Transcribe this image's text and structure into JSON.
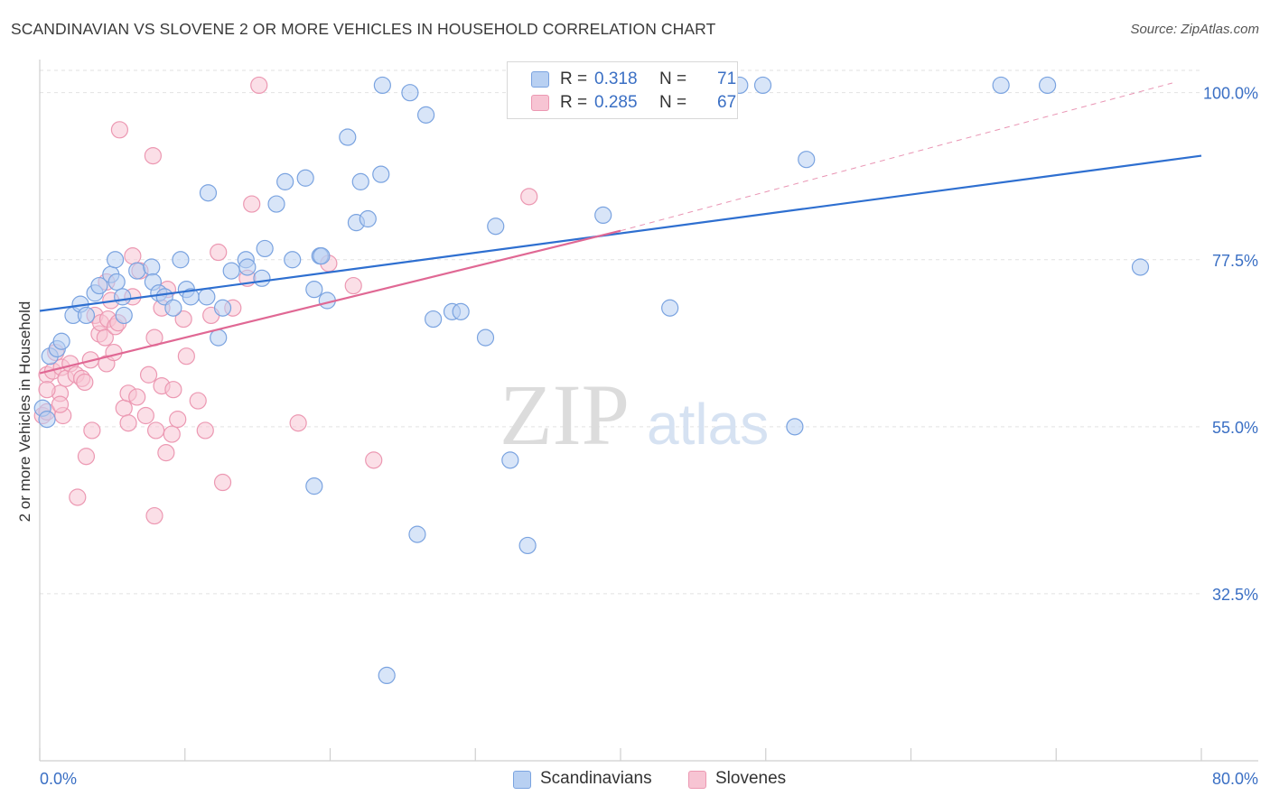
{
  "title": "SCANDINAVIAN VS SLOVENE 2 OR MORE VEHICLES IN HOUSEHOLD CORRELATION CHART",
  "source": "Source: ZipAtlas.com",
  "watermark": {
    "zip": "ZIP",
    "atlas": "atlas"
  },
  "legend": {
    "r_label": "R =",
    "n_label": "N =",
    "rows": [
      {
        "r": "0.318",
        "n": "71"
      },
      {
        "r": "0.285",
        "n": "67"
      }
    ]
  },
  "colors": {
    "blue_fill": "#b8d0f2",
    "blue_stroke": "#7aa3e0",
    "blue_line": "#2e6fd0",
    "pink_fill": "#f7c4d3",
    "pink_stroke": "#ec98b2",
    "pink_line": "#e06894",
    "tick_label": "#3a6fc4",
    "grid": "#e2e2e2"
  },
  "chart_data": {
    "type": "scatter",
    "title": "SCANDINAVIAN VS SLOVENE 2 OR MORE VEHICLES IN HOUSEHOLD CORRELATION CHART",
    "xlabel": "",
    "ylabel": "2 or more Vehicles in Household",
    "xlim": [
      0,
      80
    ],
    "ylim": [
      10,
      103
    ],
    "x_tick_labels": [
      "0.0%",
      "80.0%"
    ],
    "y_ticks": [
      32.5,
      55.0,
      77.5,
      100.0
    ],
    "y_tick_labels": [
      "32.5%",
      "55.0%",
      "77.5%",
      "100.0%"
    ],
    "grid": true,
    "legend_position": "top-center",
    "series": [
      {
        "name": "Scandinavians",
        "r": 0.318,
        "n": 71,
        "trend": {
          "x": [
            0,
            80
          ],
          "y": [
            70.6,
            91.5
          ]
        },
        "points": [
          [
            0.2,
            57.5
          ],
          [
            0.5,
            56
          ],
          [
            0.7,
            64.5
          ],
          [
            1.2,
            65.5
          ],
          [
            1.5,
            66.5
          ],
          [
            2.3,
            70
          ],
          [
            2.8,
            71.5
          ],
          [
            3.2,
            70
          ],
          [
            3.8,
            73
          ],
          [
            4.1,
            74
          ],
          [
            4.9,
            75.5
          ],
          [
            5.8,
            70
          ],
          [
            5.3,
            74.5
          ],
          [
            5.7,
            72.5
          ],
          [
            5.2,
            77.5
          ],
          [
            6.7,
            76
          ],
          [
            7.7,
            76.5
          ],
          [
            7.8,
            74.5
          ],
          [
            8.2,
            73
          ],
          [
            8.6,
            72.5
          ],
          [
            9.2,
            71
          ],
          [
            9.7,
            77.5
          ],
          [
            10.1,
            73.5
          ],
          [
            10.4,
            72.5
          ],
          [
            11.5,
            72.5
          ],
          [
            11.6,
            86.5
          ],
          [
            12.3,
            67
          ],
          [
            12.6,
            71
          ],
          [
            13.2,
            76
          ],
          [
            14.2,
            77.5
          ],
          [
            14.3,
            76.5
          ],
          [
            15.3,
            75
          ],
          [
            15.5,
            79
          ],
          [
            16.3,
            85
          ],
          [
            16.9,
            88
          ],
          [
            17.4,
            77.5
          ],
          [
            18.9,
            73.5
          ],
          [
            18.3,
            88.5
          ],
          [
            19.3,
            78
          ],
          [
            19.4,
            78
          ],
          [
            19.8,
            72
          ],
          [
            21.2,
            94
          ],
          [
            21.8,
            82.5
          ],
          [
            22.1,
            88
          ],
          [
            22.6,
            83
          ],
          [
            23.5,
            89
          ],
          [
            23.6,
            101
          ],
          [
            25.5,
            100
          ],
          [
            26.6,
            97
          ],
          [
            27.1,
            69.5
          ],
          [
            28.4,
            70.5
          ],
          [
            29.0,
            70.5
          ],
          [
            30.7,
            67
          ],
          [
            31.4,
            82
          ],
          [
            32.4,
            50.5
          ],
          [
            33.7,
            101
          ],
          [
            35.5,
            101
          ],
          [
            38.8,
            83.5
          ],
          [
            43.4,
            71
          ],
          [
            47.4,
            101
          ],
          [
            48.2,
            101
          ],
          [
            49.8,
            101
          ],
          [
            52.0,
            55
          ],
          [
            52.8,
            91
          ],
          [
            66.2,
            101
          ],
          [
            69.4,
            101
          ],
          [
            75.8,
            76.5
          ],
          [
            18.9,
            47
          ],
          [
            26.0,
            40.5
          ],
          [
            33.6,
            39
          ],
          [
            23.9,
            21.5
          ]
        ]
      },
      {
        "name": "Slovenes",
        "r": 0.285,
        "n": 67,
        "trend": {
          "x": [
            0,
            40
          ],
          "y": [
            62.2,
            81.4
          ]
        },
        "trend_extended": {
          "x": [
            40,
            78
          ],
          "y": [
            81.4,
            101.3
          ]
        },
        "points": [
          [
            0.2,
            56.5
          ],
          [
            0.5,
            57
          ],
          [
            0.5,
            62
          ],
          [
            0.9,
            62.5
          ],
          [
            1.1,
            65
          ],
          [
            1.4,
            59.5
          ],
          [
            1.5,
            63
          ],
          [
            1.6,
            56.5
          ],
          [
            1.8,
            61.5
          ],
          [
            2.1,
            63.5
          ],
          [
            2.5,
            62
          ],
          [
            2.9,
            61.5
          ],
          [
            3.1,
            61
          ],
          [
            2.6,
            45.5
          ],
          [
            3.2,
            51
          ],
          [
            3.5,
            64
          ],
          [
            3.6,
            54.5
          ],
          [
            3.8,
            70
          ],
          [
            4.1,
            67.5
          ],
          [
            4.2,
            69
          ],
          [
            4.5,
            67
          ],
          [
            4.6,
            63.5
          ],
          [
            4.7,
            69.5
          ],
          [
            4.6,
            74.5
          ],
          [
            4.9,
            72
          ],
          [
            5.1,
            65
          ],
          [
            5.2,
            68.5
          ],
          [
            5.4,
            69
          ],
          [
            5.8,
            57.5
          ],
          [
            6.1,
            55.5
          ],
          [
            6.1,
            59.5
          ],
          [
            6.4,
            72.5
          ],
          [
            6.4,
            78
          ],
          [
            6.7,
            59
          ],
          [
            6.9,
            76
          ],
          [
            7.3,
            56.5
          ],
          [
            7.5,
            62
          ],
          [
            7.9,
            67
          ],
          [
            7.9,
            43
          ],
          [
            8.0,
            54.5
          ],
          [
            8.4,
            71
          ],
          [
            8.4,
            60.5
          ],
          [
            8.8,
            73.5
          ],
          [
            8.7,
            51.5
          ],
          [
            9.2,
            60
          ],
          [
            9.1,
            54
          ],
          [
            9.5,
            56
          ],
          [
            9.9,
            69.5
          ],
          [
            10.1,
            64.5
          ],
          [
            10.9,
            58.5
          ],
          [
            11.4,
            54.5
          ],
          [
            11.8,
            70
          ],
          [
            12.3,
            78.5
          ],
          [
            12.6,
            47.5
          ],
          [
            13.3,
            71
          ],
          [
            14.3,
            75
          ],
          [
            14.6,
            85
          ],
          [
            15.1,
            101
          ],
          [
            17.8,
            55.5
          ],
          [
            19.9,
            77
          ],
          [
            21.6,
            74
          ],
          [
            23.0,
            50.5
          ],
          [
            33.7,
            86
          ],
          [
            5.5,
            95
          ],
          [
            7.8,
            91.5
          ],
          [
            0.5,
            60
          ],
          [
            1.4,
            58
          ]
        ]
      }
    ]
  }
}
